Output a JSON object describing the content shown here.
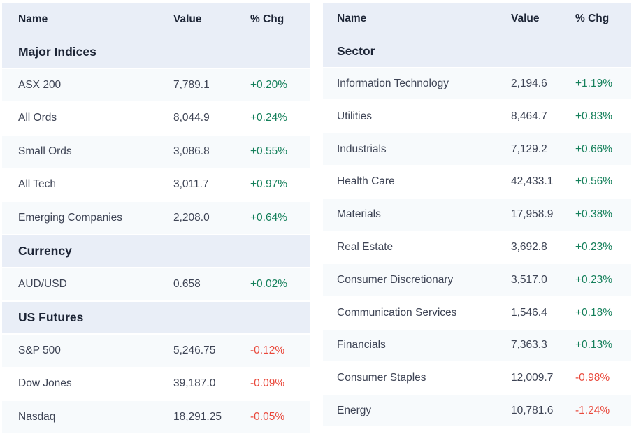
{
  "colors": {
    "positive": "#15805b",
    "negative": "#e9483b",
    "header_bg": "#e9eef7",
    "stripe_bg": "#f7fafc",
    "heading_text": "#1d2536",
    "body_text": "#3e4455"
  },
  "tables": [
    {
      "name": "market-summary",
      "columns": {
        "name": "Name",
        "value": "Value",
        "chg": "% Chg"
      },
      "sections": [
        {
          "title": "Major Indices",
          "rows": [
            {
              "name": "ASX 200",
              "value": "7,789.1",
              "chg": "+0.20%"
            },
            {
              "name": "All Ords",
              "value": "8,044.9",
              "chg": "+0.24%"
            },
            {
              "name": "Small Ords",
              "value": "3,086.8",
              "chg": "+0.55%"
            },
            {
              "name": "All Tech",
              "value": "3,011.7",
              "chg": "+0.97%"
            },
            {
              "name": "Emerging Companies",
              "value": "2,208.0",
              "chg": "+0.64%"
            }
          ]
        },
        {
          "title": "Currency",
          "rows": [
            {
              "name": "AUD/USD",
              "value": "0.658",
              "chg": "+0.02%"
            }
          ]
        },
        {
          "title": "US Futures",
          "rows": [
            {
              "name": "S&P 500",
              "value": "5,246.75",
              "chg": "-0.12%"
            },
            {
              "name": "Dow Jones",
              "value": "39,187.0",
              "chg": "-0.09%"
            },
            {
              "name": "Nasdaq",
              "value": "18,291.25",
              "chg": "-0.05%"
            }
          ]
        }
      ]
    },
    {
      "name": "sector-summary",
      "columns": {
        "name": "Name",
        "value": "Value",
        "chg": "% Chg"
      },
      "sections": [
        {
          "title": "Sector",
          "rows": [
            {
              "name": "Information Technology",
              "value": "2,194.6",
              "chg": "+1.19%"
            },
            {
              "name": "Utilities",
              "value": "8,464.7",
              "chg": "+0.83%"
            },
            {
              "name": "Industrials",
              "value": "7,129.2",
              "chg": "+0.66%"
            },
            {
              "name": "Health Care",
              "value": "42,433.1",
              "chg": "+0.56%"
            },
            {
              "name": "Materials",
              "value": "17,958.9",
              "chg": "+0.38%"
            },
            {
              "name": "Real Estate",
              "value": "3,692.8",
              "chg": "+0.23%"
            },
            {
              "name": "Consumer Discretionary",
              "value": "3,517.0",
              "chg": "+0.23%"
            },
            {
              "name": "Communication Services",
              "value": "1,546.4",
              "chg": "+0.18%"
            },
            {
              "name": "Financials",
              "value": "7,363.3",
              "chg": "+0.13%"
            },
            {
              "name": "Consumer Staples",
              "value": "12,009.7",
              "chg": "-0.98%"
            },
            {
              "name": "Energy",
              "value": "10,781.6",
              "chg": "-1.24%"
            }
          ]
        }
      ]
    }
  ]
}
